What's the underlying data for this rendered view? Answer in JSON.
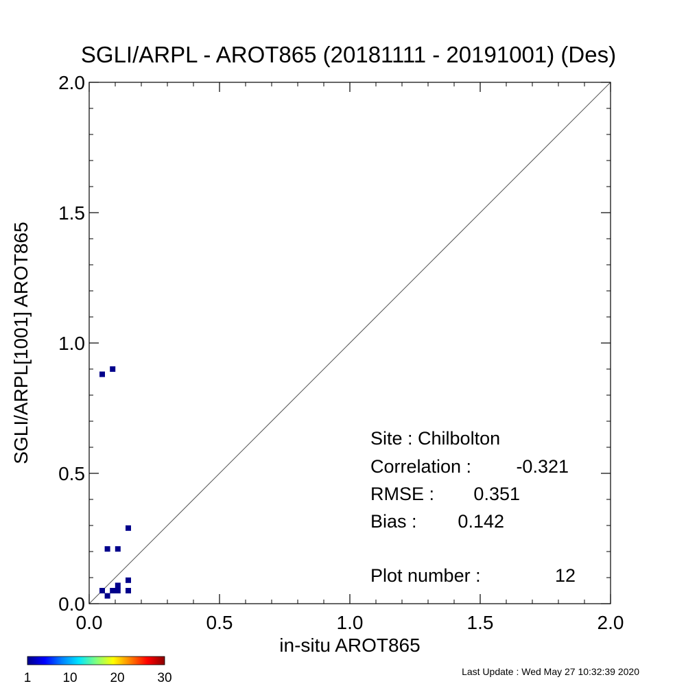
{
  "chart_data": {
    "type": "scatter",
    "title": "SGLI/ARPL - AROT865 (20181111 - 20191001) (Des)",
    "xlabel": "in-situ AROT865",
    "ylabel": "SGLI/ARPL[1001]    AROT865",
    "xlim": [
      0.0,
      2.0
    ],
    "ylim": [
      0.0,
      2.0
    ],
    "x_tick_labels": [
      "0.0",
      "0.5",
      "1.0",
      "1.5",
      "2.0"
    ],
    "y_tick_labels": [
      "0.0",
      "0.5",
      "1.0",
      "1.5",
      "2.0"
    ],
    "one_to_one_line": true,
    "grid": false,
    "point_color": "#00008b",
    "points": [
      {
        "x": 0.05,
        "y": 0.88
      },
      {
        "x": 0.09,
        "y": 0.9
      },
      {
        "x": 0.15,
        "y": 0.29
      },
      {
        "x": 0.07,
        "y": 0.21
      },
      {
        "x": 0.11,
        "y": 0.21
      },
      {
        "x": 0.15,
        "y": 0.09
      },
      {
        "x": 0.05,
        "y": 0.05
      },
      {
        "x": 0.11,
        "y": 0.07
      },
      {
        "x": 0.09,
        "y": 0.05
      },
      {
        "x": 0.11,
        "y": 0.05
      },
      {
        "x": 0.15,
        "y": 0.05
      },
      {
        "x": 0.07,
        "y": 0.03
      }
    ],
    "stats": {
      "site": "Site : Chilbolton",
      "correlation_label": "Correlation :",
      "correlation": "-0.321",
      "rmse_label": "RMSE :",
      "rmse": "0.351",
      "bias_label": "Bias :",
      "bias": "0.142",
      "plot_number_label": "Plot number :",
      "plot_number": "12"
    },
    "colorbar": {
      "colors": [
        "#00008b",
        "#0000ff",
        "#0080ff",
        "#00e5ff",
        "#80ff80",
        "#ffff00",
        "#ff8000",
        "#ff0000",
        "#8b0000"
      ],
      "tick_labels": [
        "1",
        "10",
        "20",
        "30"
      ]
    }
  },
  "footer": {
    "last_update": "Last Update : Wed May 27 10:32:39 2020"
  }
}
